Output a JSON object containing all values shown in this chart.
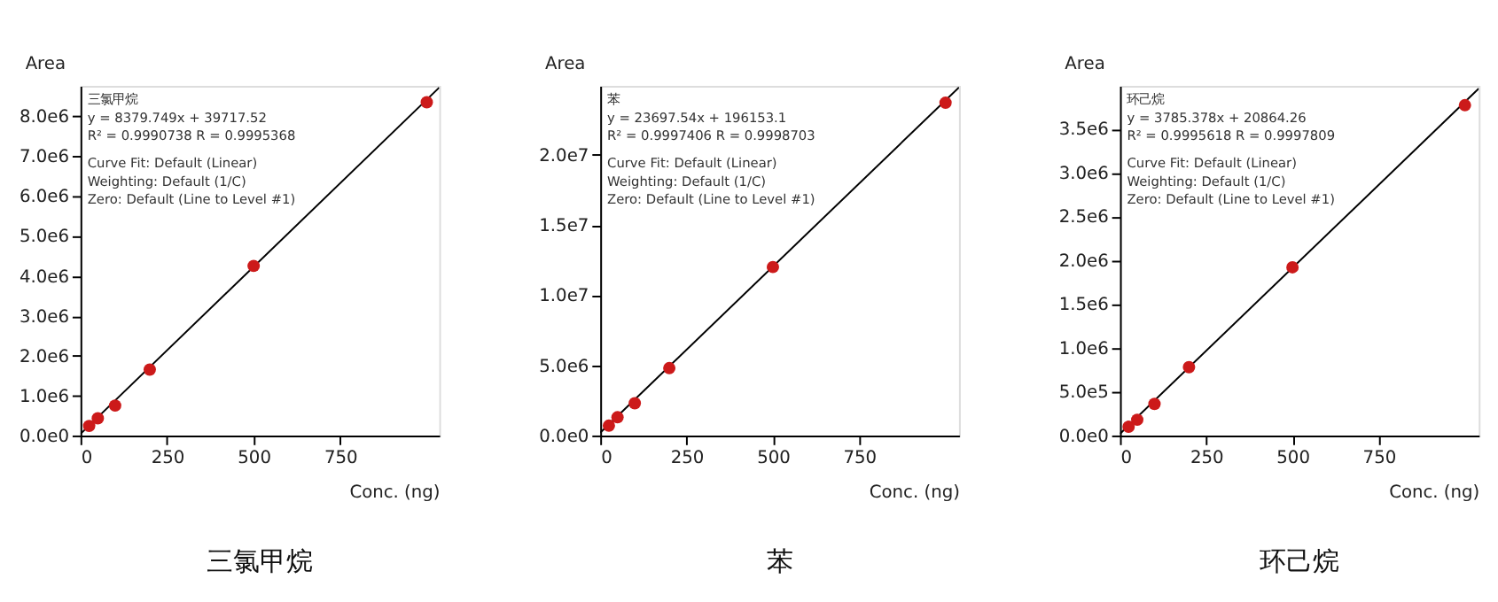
{
  "chart_data": [
    {
      "type": "scatter",
      "title": "三氯甲烷",
      "xlabel": "Conc. (ng)",
      "ylabel": "Area",
      "grid": false,
      "annotations": [
        "三氯甲烷",
        "y = 8379.749x + 39717.52",
        "R² = 0.9990738    R = 0.9995368",
        "Curve Fit: Default (Linear)",
        "Weighting: Default (1/C)",
        "Zero: Default (Line to Level #1)"
      ],
      "xlim": [
        0,
        1036
      ],
      "xticks": [
        0,
        250,
        500,
        750
      ],
      "ylim": [
        0,
        8760000
      ],
      "yticks": [
        {
          "value": 0,
          "label": "0.0e0"
        },
        {
          "value": 1000000,
          "label": "1.0e6"
        },
        {
          "value": 2000000,
          "label": "2.0e6"
        },
        {
          "value": 3000000,
          "label": "3.0e6"
        },
        {
          "value": 4000000,
          "label": "4.0e6"
        },
        {
          "value": 5000000,
          "label": "5.0e6"
        },
        {
          "value": 6000000,
          "label": "6.0e6"
        },
        {
          "value": 7000000,
          "label": "7.0e6"
        },
        {
          "value": 8000000,
          "label": "8.0e6"
        }
      ],
      "series": [
        {
          "type": "line",
          "marker": "none",
          "line_style": "solid",
          "color": "#000000",
          "x": [
            0,
            1036
          ],
          "values": [
            40000,
            8720000
          ]
        },
        {
          "marker": "circle",
          "color": "#cc1a1a",
          "x": [
            25,
            50,
            100,
            200,
            500,
            1000
          ],
          "values": [
            240000,
            430000,
            750000,
            1650000,
            4250000,
            8350000
          ]
        }
      ]
    },
    {
      "type": "scatter",
      "title": "苯",
      "xlabel": "Conc. (ng)",
      "ylabel": "Area",
      "grid": false,
      "annotations": [
        "苯",
        "y = 23697.54x + 196153.1",
        "R² = 0.9997406    R = 0.9998703",
        "Curve Fit: Default (Linear)",
        "Weighting: Default (1/C)",
        "Zero: Default (Line to Level #1)"
      ],
      "xlim": [
        0,
        1039
      ],
      "xticks": [
        0,
        250,
        500,
        750
      ],
      "ylim": [
        0,
        24900000
      ],
      "yticks": [
        {
          "value": 0,
          "label": "0.0e0"
        },
        {
          "value": 5000000,
          "label": "5.0e6"
        },
        {
          "value": 10000000,
          "label": "1.0e7"
        },
        {
          "value": 15000000,
          "label": "1.5e7"
        },
        {
          "value": 20000000,
          "label": "2.0e7"
        }
      ],
      "series": [
        {
          "type": "line",
          "marker": "none",
          "line_style": "solid",
          "color": "#000000",
          "x": [
            0,
            1039
          ],
          "values": [
            200000,
            24800000
          ]
        },
        {
          "marker": "circle",
          "color": "#cc1a1a",
          "x": [
            25,
            50,
            100,
            200,
            500,
            1000
          ],
          "values": [
            700000,
            1300000,
            2300000,
            4800000,
            12000000,
            23700000
          ]
        }
      ]
    },
    {
      "type": "scatter",
      "title": "环己烷",
      "xlabel": "Conc. (ng)",
      "ylabel": "Area",
      "grid": false,
      "annotations": [
        "环己烷",
        "y = 3785.378x + 20864.26",
        "R² = 0.9995618    R = 0.9997809",
        "Curve Fit: Default (Linear)",
        "Weighting: Default (1/C)",
        "Zero: Default (Line to Level #1)"
      ],
      "xlim": [
        0,
        1040
      ],
      "xticks": [
        0,
        250,
        500,
        750
      ],
      "ylim": [
        0,
        3990000
      ],
      "yticks": [
        {
          "value": 0,
          "label": "0.0e0"
        },
        {
          "value": 500000,
          "label": "5.0e5"
        },
        {
          "value": 1000000,
          "label": "1.0e6"
        },
        {
          "value": 1500000,
          "label": "1.5e6"
        },
        {
          "value": 2000000,
          "label": "2.0e6"
        },
        {
          "value": 2500000,
          "label": "2.5e6"
        },
        {
          "value": 3000000,
          "label": "3.0e6"
        },
        {
          "value": 3500000,
          "label": "3.5e6"
        }
      ],
      "series": [
        {
          "type": "line",
          "marker": "none",
          "line_style": "solid",
          "color": "#000000",
          "x": [
            0,
            1040
          ],
          "values": [
            20000,
            3960000
          ]
        },
        {
          "marker": "circle",
          "color": "#cc1a1a",
          "x": [
            25,
            50,
            100,
            200,
            500,
            1000
          ],
          "values": [
            100000,
            180000,
            360000,
            780000,
            1920000,
            3770000
          ]
        }
      ]
    }
  ]
}
